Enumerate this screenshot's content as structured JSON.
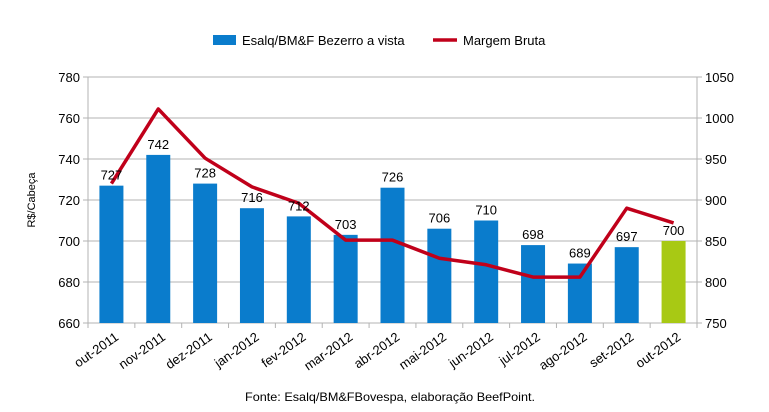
{
  "chart_data": {
    "type": "bar+line",
    "categories": [
      "out-2011",
      "nov-2011",
      "dez-2011",
      "jan-2012",
      "fev-2012",
      "mar-2012",
      "abr-2012",
      "mai-2012",
      "jun-2012",
      "jul-2012",
      "ago-2012",
      "set-2012",
      "out-2012"
    ],
    "series": [
      {
        "name": "Esalq/BM&F Bezerro a vista",
        "type": "bar",
        "axis": "left",
        "values": [
          727,
          742,
          728,
          716,
          712,
          703,
          726,
          706,
          710,
          698,
          689,
          697,
          700
        ],
        "color": "#0a7ccc",
        "highlight_color": "#a8c914",
        "highlight_index": 12
      },
      {
        "name": "Margem Bruta",
        "type": "line",
        "axis": "right",
        "values": [
          920,
          1011,
          951,
          916,
          896,
          851,
          851,
          829,
          821,
          806,
          806,
          890,
          872
        ],
        "color": "#c0001a"
      }
    ],
    "ylabel": "R$/Cabeça",
    "ylim": [
      660,
      780
    ],
    "yticks": [
      660,
      680,
      700,
      720,
      740,
      760,
      780
    ],
    "y2lim": [
      750,
      1050
    ],
    "y2ticks": [
      750,
      800,
      850,
      900,
      950,
      1000,
      1050
    ],
    "grid": true,
    "legend": "top",
    "source": "Fonte: Esalq/BM&FBovespa, elaboração BeefPoint."
  }
}
